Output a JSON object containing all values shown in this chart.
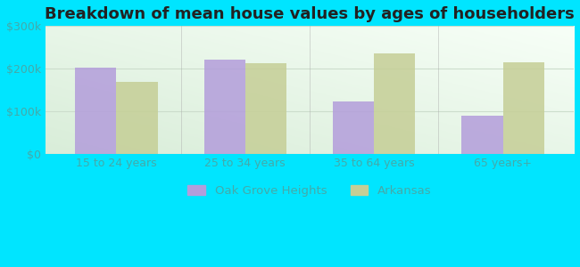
{
  "title": "Breakdown of mean house values by ages of householders",
  "categories": [
    "15 to 24 years",
    "25 to 34 years",
    "35 to 64 years",
    "65 years+"
  ],
  "oak_grove_values": [
    202000,
    222000,
    122000,
    90000
  ],
  "arkansas_values": [
    168000,
    213000,
    235000,
    215000
  ],
  "oak_grove_color": "#b39ddb",
  "arkansas_color": "#c5ce96",
  "ylim": [
    0,
    300000
  ],
  "yticks": [
    0,
    100000,
    200000,
    300000
  ],
  "ytick_labels": [
    "$0",
    "$100k",
    "$200k",
    "$300k"
  ],
  "legend_oak": "Oak Grove Heights",
  "legend_ark": "Arkansas",
  "bar_width": 0.32,
  "figure_bg": "#00e5ff",
  "plot_bg_colors": [
    "#d8edd8",
    "#eef8ee",
    "#f5fff8",
    "#ffffff"
  ],
  "title_fontsize": 13,
  "label_fontsize": 9.5,
  "tick_fontsize": 9,
  "tick_color": "#44aaaa",
  "divider_color": "#aaaaaa",
  "grid_color": "#ccddcc"
}
